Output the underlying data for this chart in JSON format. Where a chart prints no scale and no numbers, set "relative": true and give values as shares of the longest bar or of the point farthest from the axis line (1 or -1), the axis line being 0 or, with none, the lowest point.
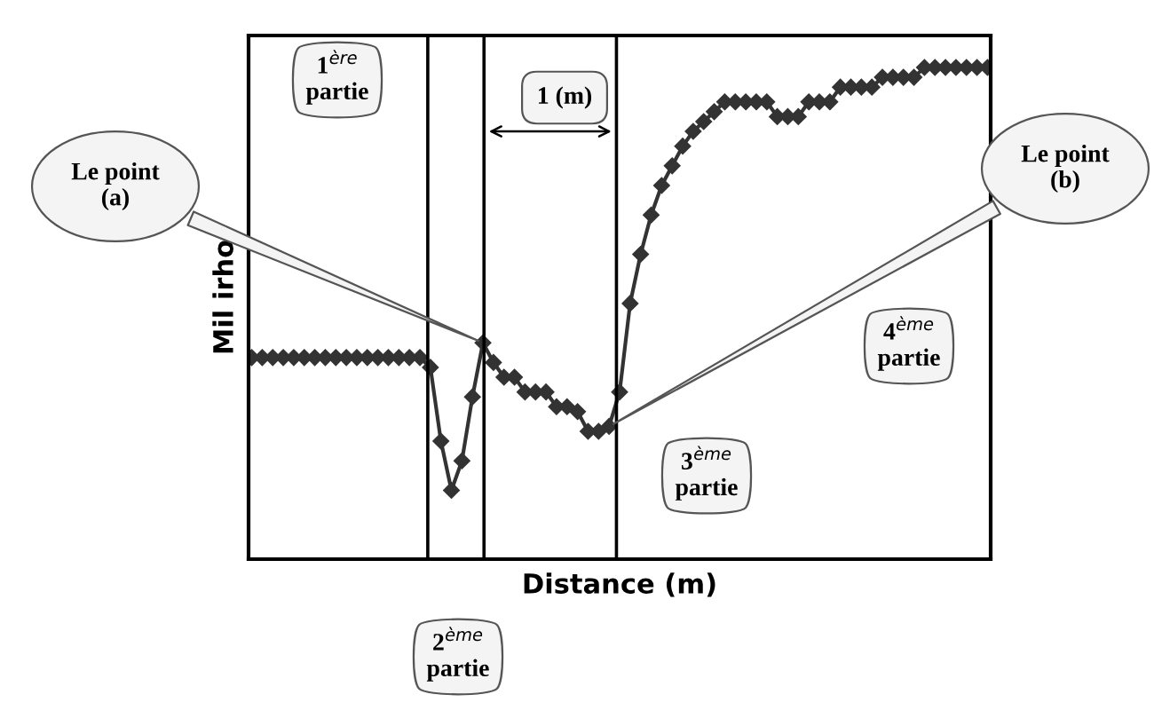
{
  "chart_data": {
    "type": "line",
    "relative": true,
    "xlabel": "Distance (m)",
    "ylabel": "Mil irho",
    "marker": "diamond",
    "line_style": "solid",
    "grid": false,
    "categories": [
      null,
      null,
      null,
      null,
      null,
      null,
      null,
      null,
      null,
      null,
      null,
      null,
      null,
      null,
      null,
      null,
      null,
      null,
      null,
      null,
      null,
      null,
      null,
      null,
      null,
      null,
      null,
      null,
      null,
      null,
      null,
      null,
      null,
      null,
      null,
      null,
      null,
      null,
      null,
      null,
      null,
      null,
      null,
      null,
      null,
      null,
      null,
      null,
      null,
      null,
      null,
      null,
      null,
      null,
      null,
      null,
      null,
      null,
      null,
      null,
      null,
      null,
      null,
      null,
      null,
      null,
      null,
      null,
      null,
      null,
      null
    ],
    "series": [
      {
        "color": "#333333",
        "values": [
          0.41,
          0.41,
          0.41,
          0.41,
          0.41,
          0.41,
          0.41,
          0.41,
          0.41,
          0.41,
          0.41,
          0.41,
          0.41,
          0.41,
          0.41,
          0.41,
          0.41,
          0.39,
          0.24,
          0.14,
          0.2,
          0.33,
          0.44,
          0.4,
          0.37,
          0.37,
          0.34,
          0.34,
          0.34,
          0.31,
          0.31,
          0.3,
          0.26,
          0.26,
          0.27,
          0.34,
          0.52,
          0.62,
          0.7,
          0.76,
          0.8,
          0.84,
          0.87,
          0.89,
          0.91,
          0.93,
          0.93,
          0.93,
          0.93,
          0.93,
          0.9,
          0.9,
          0.9,
          0.93,
          0.93,
          0.93,
          0.96,
          0.96,
          0.96,
          0.96,
          0.98,
          0.98,
          0.98,
          0.98,
          1.0,
          1.0,
          1.0,
          1.0,
          1.0,
          1.0,
          1.0
        ]
      }
    ],
    "annotations": [
      "Le point\n(a)",
      "1$^{ère}$\npartie",
      "1 (m)",
      "Le point\n(b)",
      "2$^{ème}$\npartie",
      "3$^{ème}$\npartie",
      "4$^{ème}$\npartie"
    ]
  }
}
